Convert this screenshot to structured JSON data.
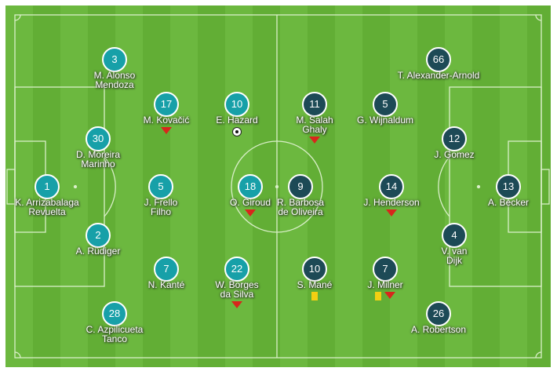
{
  "colors": {
    "home": "#17a0a8",
    "away": "#1d4a56",
    "substituted": "#d8261c",
    "yellow_card": "#f3cf12"
  },
  "home": [
    {
      "number": "1",
      "name": "K. Arrizabalaga",
      "name2": "Revuelta",
      "events": []
    },
    {
      "number": "30",
      "name": "D. Moreira",
      "name2": "Marinho",
      "events": []
    },
    {
      "number": "3",
      "name": "M. Alonso",
      "name2": "Mendoza",
      "events": []
    },
    {
      "number": "2",
      "name": "A. Rüdiger",
      "name2": "",
      "events": []
    },
    {
      "number": "28",
      "name": "C. Azpilicueta",
      "name2": "Tanco",
      "events": []
    },
    {
      "number": "17",
      "name": "M. Kovačić",
      "name2": "",
      "events": [
        "sub-off"
      ]
    },
    {
      "number": "5",
      "name": "J. Frello",
      "name2": "Filho",
      "events": []
    },
    {
      "number": "7",
      "name": "N. Kanté",
      "name2": "",
      "events": []
    },
    {
      "number": "10",
      "name": "E. Hazard",
      "name2": "",
      "events": [
        "goal"
      ]
    },
    {
      "number": "18",
      "name": "O. Giroud",
      "name2": "",
      "events": [
        "sub-off"
      ]
    },
    {
      "number": "22",
      "name": "W. Borges",
      "name2": "da Silva",
      "events": [
        "sub-off"
      ]
    }
  ],
  "away": [
    {
      "number": "9",
      "name": "R. Barbosa",
      "name2": "de Oliveira",
      "events": []
    },
    {
      "number": "11",
      "name": "M. Salah",
      "name2": "Ghaly",
      "events": [
        "sub-off"
      ]
    },
    {
      "number": "10",
      "name": "S. Mané",
      "name2": "",
      "events": [
        "yellow-card"
      ]
    },
    {
      "number": "5",
      "name": "G. Wijnaldum",
      "name2": "",
      "events": []
    },
    {
      "number": "14",
      "name": "J. Henderson",
      "name2": "",
      "events": [
        "sub-off"
      ]
    },
    {
      "number": "7",
      "name": "J. Milner",
      "name2": "",
      "events": [
        "yellow-card",
        "sub-off"
      ]
    },
    {
      "number": "66",
      "name": "T. Alexander-Arnold",
      "name2": "",
      "events": []
    },
    {
      "number": "12",
      "name": "J. Gomez",
      "name2": "",
      "events": []
    },
    {
      "number": "4",
      "name": "V. van",
      "name2": "Dijk",
      "events": []
    },
    {
      "number": "26",
      "name": "A. Robertson",
      "name2": "",
      "events": []
    },
    {
      "number": "13",
      "name": "A. Becker",
      "name2": "",
      "events": []
    }
  ]
}
